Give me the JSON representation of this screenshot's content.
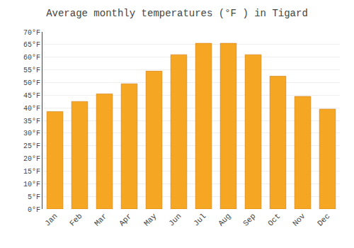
{
  "chart_data": {
    "type": "bar",
    "title": "Average monthly temperatures (°F ) in Tigard",
    "categories": [
      "Jan",
      "Feb",
      "Mar",
      "Apr",
      "May",
      "Jun",
      "Jul",
      "Aug",
      "Sep",
      "Oct",
      "Nov",
      "Dec"
    ],
    "values": [
      38.5,
      42.5,
      45.5,
      49.5,
      54.5,
      61,
      65.5,
      65.5,
      61,
      52.5,
      44.5,
      39.5
    ],
    "color": "#F5A623",
    "ylim": [
      0,
      70
    ],
    "yticks": [
      {
        "value": 0,
        "label": "0°F"
      },
      {
        "value": 5,
        "label": "5°F"
      },
      {
        "value": 10,
        "label": "10°F"
      },
      {
        "value": 15,
        "label": "15°F"
      },
      {
        "value": 20,
        "label": "20°F"
      },
      {
        "value": 25,
        "label": "25°F"
      },
      {
        "value": 30,
        "label": "30°F"
      },
      {
        "value": 35,
        "label": "35°F"
      },
      {
        "value": 40,
        "label": "40°F"
      },
      {
        "value": 45,
        "label": "45°F"
      },
      {
        "value": 50,
        "label": "50°F"
      },
      {
        "value": 55,
        "label": "55°F"
      },
      {
        "value": 60,
        "label": "60°F"
      },
      {
        "value": 65,
        "label": "65°F"
      },
      {
        "value": 70,
        "label": "70°F"
      }
    ],
    "grid": true
  }
}
